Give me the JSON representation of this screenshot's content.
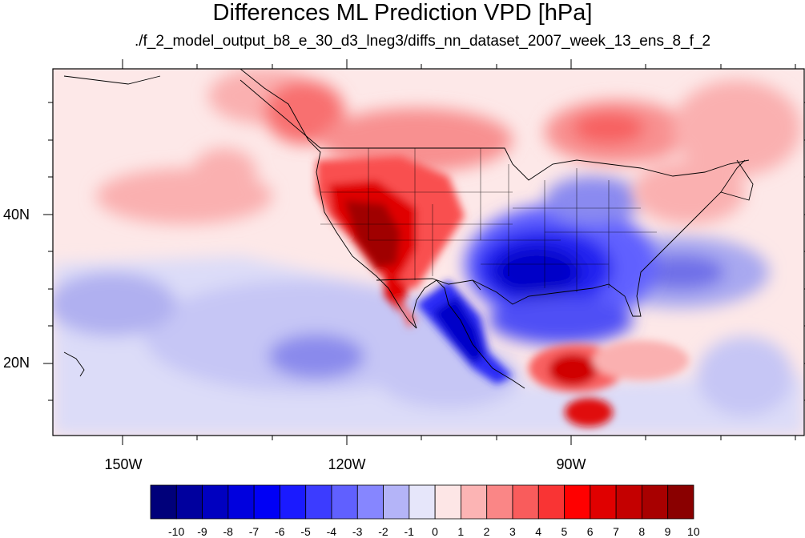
{
  "title": "Differences ML Prediction VPD [hPa]",
  "subtitle": "./f_2_model_output_b8_e_30_d3_lneg3/diffs_nn_dataset_2007_week_13_ens_8_f_2",
  "axes": {
    "lat_labels": [
      "40N",
      "20N"
    ],
    "lon_labels": [
      "150W",
      "120W",
      "90W"
    ]
  },
  "colorbar": {
    "labels": [
      "-10",
      "-9",
      "-8",
      "-7",
      "-6",
      "-5",
      "-4",
      "-3",
      "-2",
      "-1",
      "0",
      "1",
      "2",
      "3",
      "4",
      "5",
      "6",
      "7",
      "8",
      "9",
      "10"
    ],
    "colors": [
      "#00007a",
      "#00009e",
      "#0000c0",
      "#0000de",
      "#0000f5",
      "#1a1aff",
      "#3c3cff",
      "#6060ff",
      "#8686ff",
      "#b4b4f8",
      "#e6e6fa",
      "#fde6e6",
      "#fcb4b4",
      "#fa8686",
      "#f95c5c",
      "#f93434",
      "#ff0000",
      "#e00000",
      "#c40000",
      "#a80000",
      "#8a0000"
    ]
  },
  "colors": {
    "frame": "#000000",
    "background": "#ffffff"
  }
}
